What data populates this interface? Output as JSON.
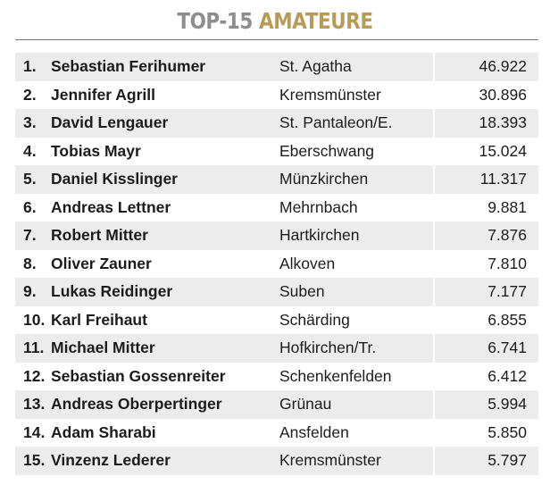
{
  "header": {
    "title_part1": "TOP-15",
    "title_part2": "AMATEURE"
  },
  "colors": {
    "title_gray": "#8d8d8d",
    "title_gold": "#b79b57",
    "row_shade": "#ececec",
    "text": "#1c1c1c"
  },
  "rows": [
    {
      "rank": "1.",
      "name": "Sebastian Ferihumer",
      "place": "St. Agatha",
      "points": "46.922"
    },
    {
      "rank": "2.",
      "name": "Jennifer Agrill",
      "place": "Kremsmünster",
      "points": "30.896"
    },
    {
      "rank": "3.",
      "name": "David Lengauer",
      "place": "St. Pantaleon/E.",
      "points": "18.393"
    },
    {
      "rank": "4.",
      "name": "Tobias Mayr",
      "place": "Eberschwang",
      "points": "15.024"
    },
    {
      "rank": "5.",
      "name": "Daniel Kisslinger",
      "place": "Münzkirchen",
      "points": "11.317"
    },
    {
      "rank": "6.",
      "name": "Andreas Lettner",
      "place": "Mehrnbach",
      "points": "9.881"
    },
    {
      "rank": "7.",
      "name": "Robert Mitter",
      "place": "Hartkirchen",
      "points": "7.876"
    },
    {
      "rank": "8.",
      "name": "Oliver Zauner",
      "place": "Alkoven",
      "points": "7.810"
    },
    {
      "rank": "9.",
      "name": "Lukas Reidinger",
      "place": "Suben",
      "points": "7.177"
    },
    {
      "rank": "10.",
      "name": "Karl Freihaut",
      "place": "Schärding",
      "points": "6.855"
    },
    {
      "rank": "11.",
      "name": "Michael Mitter",
      "place": "Hofkirchen/Tr.",
      "points": "6.741"
    },
    {
      "rank": "12.",
      "name": "Sebastian Gossenreiter",
      "place": "Schenkenfelden",
      "points": "6.412"
    },
    {
      "rank": "13.",
      "name": "Andreas Oberpertinger",
      "place": "Grünau",
      "points": "5.994"
    },
    {
      "rank": "14.",
      "name": "Adam Sharabi",
      "place": "Ansfelden",
      "points": "5.850"
    },
    {
      "rank": "15.",
      "name": "Vinzenz Lederer",
      "place": "Kremsmünster",
      "points": "5.797"
    }
  ]
}
